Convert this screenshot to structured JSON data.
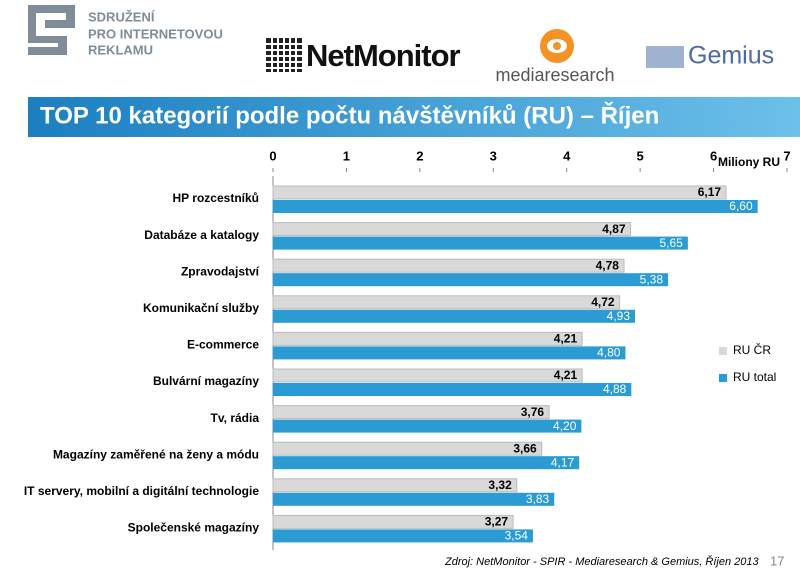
{
  "header": {
    "org_lines": [
      "SDRUŽENÍ",
      "PRO INTERNETOVOU",
      "REKLAMU"
    ],
    "logos": [
      "NetMonitor",
      "mediaresearch",
      "Gemius"
    ]
  },
  "chart_data": {
    "type": "hbar",
    "title": "TOP 10 kategorií podle počtu návštěvníků (RU) – Říjen",
    "axis_label": "Miliony RU",
    "categories": [
      "HP rozcestníků",
      "Databáze a katalogy",
      "Zpravodajství",
      "Komunikační služby",
      "E-commerce",
      "Bulvární magazíny",
      "Tv, rádia",
      "Magazíny zaměřené na ženy a módu",
      "IT servery, mobilní a digitální technologie",
      "Společenské magazíny"
    ],
    "series": [
      {
        "name": "RU ČR",
        "color": "#d9d9d9",
        "values": [
          6.17,
          4.87,
          4.78,
          4.72,
          4.21,
          4.21,
          3.76,
          3.66,
          3.32,
          3.27
        ],
        "value_labels": [
          "6,17",
          "4,87",
          "4,78",
          "4,72",
          "4,21",
          "4,21",
          "3,76",
          "3,66",
          "3,32",
          "3,27"
        ]
      },
      {
        "name": "RU total",
        "color": "#2a9bd3",
        "values": [
          6.6,
          5.65,
          5.38,
          4.93,
          4.8,
          4.88,
          4.2,
          4.17,
          3.83,
          3.54
        ],
        "value_labels": [
          "6,60",
          "5,65",
          "5,38",
          "4,93",
          "4,80",
          "4,88",
          "4,20",
          "4,17",
          "3,83",
          "3,54"
        ]
      }
    ],
    "xlim": [
      0,
      7
    ],
    "xticks": [
      0,
      1,
      2,
      3,
      4,
      5,
      6,
      7
    ],
    "legend": "right"
  },
  "footer": {
    "source": "Zdroj: NetMonitor - SPIR - Mediaresearch & Gemius, Říjen 2013",
    "page": "17"
  }
}
